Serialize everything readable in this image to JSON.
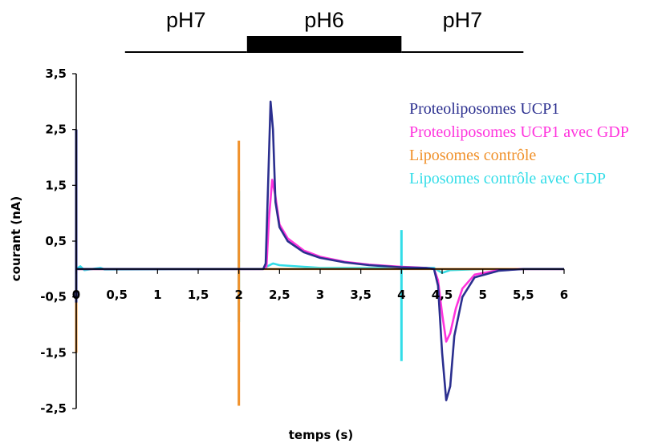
{
  "chart_data": {
    "type": "line",
    "xlabel": "temps (s)",
    "ylabel": "courant (nA)",
    "xlim": [
      0,
      6
    ],
    "ylim": [
      -2.5,
      3.5
    ],
    "x_ticks": [
      0,
      0.5,
      1,
      1.5,
      2,
      2.5,
      3,
      3.5,
      4,
      4.5,
      5,
      5.5,
      6
    ],
    "x_tick_labels": [
      "0",
      "0,5",
      "1",
      "1,5",
      "2",
      "2,5",
      "3",
      "3,5",
      "4",
      "4,5",
      "5",
      "5,5",
      "6"
    ],
    "y_ticks": [
      3.5,
      2.5,
      1.5,
      0.5,
      -0.5,
      -1.5,
      -2.5
    ],
    "y_tick_labels": [
      "3,5",
      "2,5",
      "1,5",
      "0,5",
      "-0,5",
      "-1,5",
      "-2,5"
    ],
    "grid": false,
    "legend_position": "top-right",
    "phases": [
      {
        "label": "pH7",
        "start": 0.6,
        "end": 2.1,
        "style": "line"
      },
      {
        "label": "pH6",
        "start": 2.1,
        "end": 4.0,
        "style": "bar"
      },
      {
        "label": "pH7",
        "start": 4.0,
        "end": 5.5,
        "style": "line"
      }
    ],
    "series": [
      {
        "name": "Proteoliposomes UCP1",
        "color": "#2b2f8f",
        "points": [
          [
            0,
            0
          ],
          [
            0.3,
            0
          ],
          [
            2.3,
            0
          ],
          [
            2.33,
            0.1
          ],
          [
            2.36,
            1.5
          ],
          [
            2.39,
            3.0
          ],
          [
            2.42,
            2.5
          ],
          [
            2.45,
            1.2
          ],
          [
            2.5,
            0.75
          ],
          [
            2.6,
            0.5
          ],
          [
            2.8,
            0.3
          ],
          [
            3.0,
            0.2
          ],
          [
            3.3,
            0.12
          ],
          [
            3.6,
            0.07
          ],
          [
            3.9,
            0.04
          ],
          [
            4.0,
            0.03
          ],
          [
            4.3,
            0.02
          ],
          [
            4.4,
            0
          ],
          [
            4.45,
            -0.3
          ],
          [
            4.5,
            -1.5
          ],
          [
            4.55,
            -2.35
          ],
          [
            4.6,
            -2.1
          ],
          [
            4.65,
            -1.2
          ],
          [
            4.75,
            -0.5
          ],
          [
            4.9,
            -0.15
          ],
          [
            5.2,
            -0.03
          ],
          [
            5.5,
            0
          ],
          [
            6.0,
            0
          ]
        ],
        "spikes": [
          [
            0.0,
            -0.6,
            2.5
          ]
        ]
      },
      {
        "name": "Proteoliposomes UCP1 avec GDP",
        "color": "#ff33dd",
        "points": [
          [
            0,
            0
          ],
          [
            0.3,
            0
          ],
          [
            2.3,
            0
          ],
          [
            2.34,
            0.05
          ],
          [
            2.37,
            0.9
          ],
          [
            2.41,
            1.6
          ],
          [
            2.45,
            1.3
          ],
          [
            2.5,
            0.8
          ],
          [
            2.6,
            0.55
          ],
          [
            2.8,
            0.33
          ],
          [
            3.0,
            0.22
          ],
          [
            3.3,
            0.13
          ],
          [
            3.6,
            0.08
          ],
          [
            3.9,
            0.05
          ],
          [
            4.0,
            0.04
          ],
          [
            4.3,
            0.02
          ],
          [
            4.4,
            0
          ],
          [
            4.45,
            -0.2
          ],
          [
            4.5,
            -0.8
          ],
          [
            4.55,
            -1.3
          ],
          [
            4.6,
            -1.15
          ],
          [
            4.67,
            -0.7
          ],
          [
            4.75,
            -0.35
          ],
          [
            4.9,
            -0.1
          ],
          [
            5.2,
            -0.02
          ],
          [
            5.5,
            0
          ],
          [
            6.0,
            0
          ]
        ],
        "spikes": []
      },
      {
        "name": "Liposomes contrôle",
        "color": "#f0912b",
        "points": [
          [
            0,
            0
          ],
          [
            2.3,
            0
          ],
          [
            6.0,
            0
          ]
        ],
        "spikes": [
          [
            0.0,
            -1.5,
            2.3
          ],
          [
            2.0,
            -2.45,
            2.3
          ]
        ]
      },
      {
        "name": "Liposomes contrôle avec GDP",
        "color": "#33dde8",
        "points": [
          [
            0,
            0
          ],
          [
            0.05,
            0.05
          ],
          [
            0.1,
            -0.02
          ],
          [
            0.3,
            0.02
          ],
          [
            0.35,
            -0.01
          ],
          [
            2.3,
            0
          ],
          [
            2.35,
            0.05
          ],
          [
            2.42,
            0.1
          ],
          [
            2.5,
            0.07
          ],
          [
            3.0,
            0.02
          ],
          [
            4.4,
            0.02
          ],
          [
            4.5,
            -0.07
          ],
          [
            4.6,
            -0.02
          ],
          [
            5.0,
            0
          ],
          [
            6.0,
            0
          ]
        ],
        "spikes": [
          [
            0.0,
            -0.45,
            0.75
          ],
          [
            2.0,
            -0.95,
            1.4
          ],
          [
            4.0,
            -1.65,
            0.7
          ]
        ]
      }
    ]
  }
}
